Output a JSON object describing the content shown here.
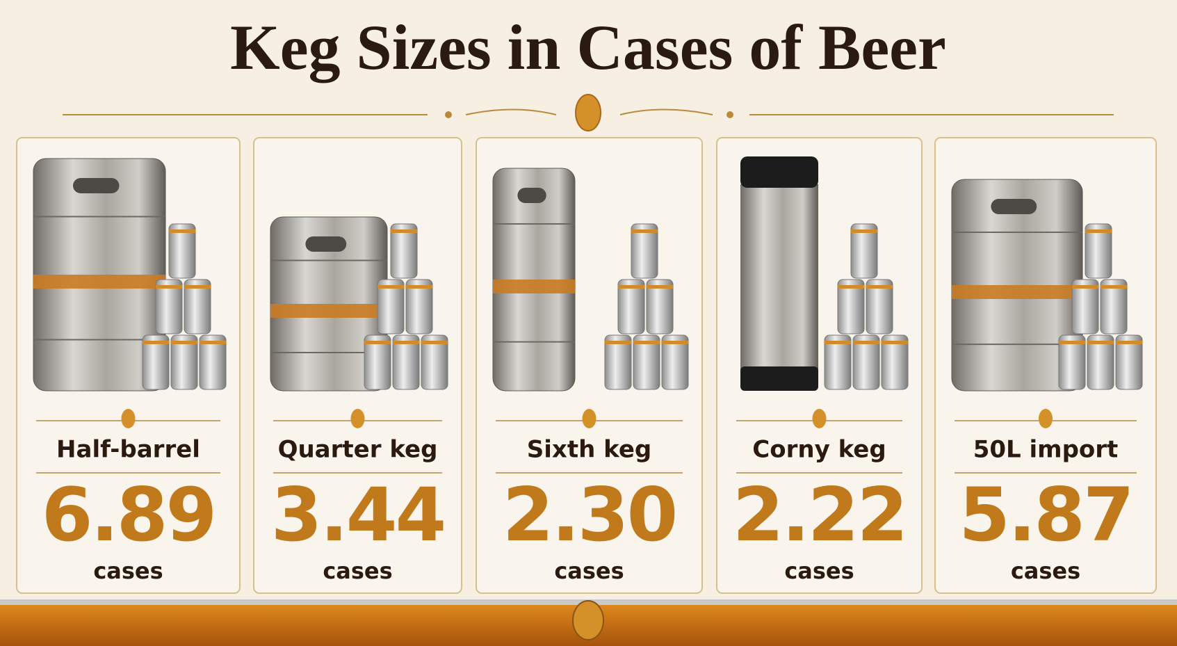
{
  "header": {
    "title": "Keg Sizes in Cases of Beer"
  },
  "cards": [
    {
      "name": "Half-barrel",
      "value": "6.89",
      "unit": "cases"
    },
    {
      "name": "Quarter keg",
      "value": "3.44",
      "unit": "cases"
    },
    {
      "name": "Sixth keg",
      "value": "2.30",
      "unit": "cases"
    },
    {
      "name": "Corny keg",
      "value": "2.22",
      "unit": "cases"
    },
    {
      "name": "50L import",
      "value": "5.87",
      "unit": "cases"
    }
  ]
}
